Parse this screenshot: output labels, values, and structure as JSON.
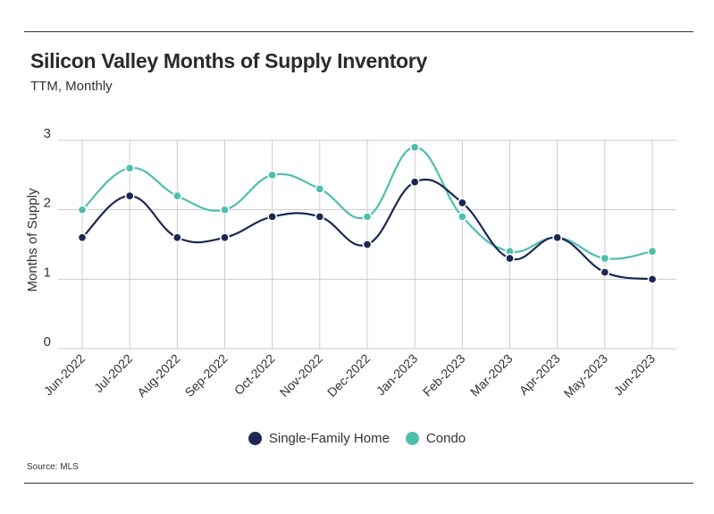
{
  "colors": {
    "single_family": "#1c2853",
    "condo": "#4fbfad",
    "grid": "#cccccc",
    "rule": "#333333"
  },
  "source": "Source: MLS",
  "chart_data": {
    "type": "line",
    "title": "Silicon Valley Months of Supply Inventory",
    "subtitle": "TTM, Monthly",
    "xlabel": "",
    "ylabel": "Months of Supply",
    "ylim": [
      0,
      3
    ],
    "yticks": [
      0,
      1,
      2,
      3
    ],
    "grid": true,
    "legend_position": "bottom",
    "categories": [
      "Jun-2022",
      "Jul-2022",
      "Aug-2022",
      "Sep-2022",
      "Oct-2022",
      "Nov-2022",
      "Dec-2022",
      "Jan-2023",
      "Feb-2023",
      "Mar-2023",
      "Apr-2023",
      "May-2023",
      "Jun-2023"
    ],
    "series": [
      {
        "name": "Single-Family Home",
        "color": "#1c2853",
        "values": [
          1.6,
          2.2,
          1.6,
          1.6,
          1.9,
          1.9,
          1.5,
          2.4,
          2.1,
          1.3,
          1.6,
          1.1,
          1.0
        ]
      },
      {
        "name": "Condo",
        "color": "#4fbfad",
        "values": [
          2.0,
          2.6,
          2.2,
          2.0,
          2.5,
          2.3,
          1.9,
          2.9,
          1.9,
          1.4,
          1.6,
          1.3,
          1.4
        ]
      }
    ]
  }
}
